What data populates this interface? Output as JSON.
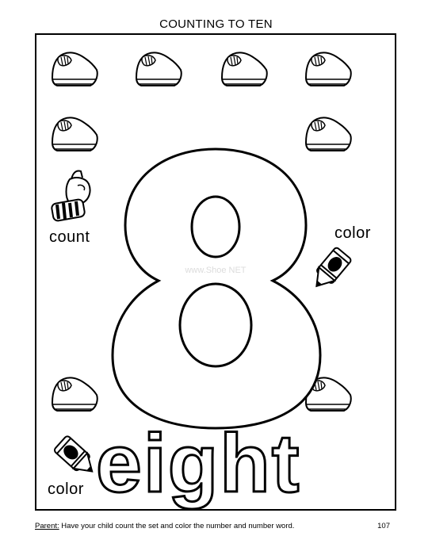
{
  "header": {
    "title": "COUNTING TO TEN"
  },
  "activity": {
    "count_label": "count",
    "color_label_right": "color",
    "color_label_left": "color",
    "numeral": "8",
    "number_word": "eight",
    "shoe_count": 8,
    "watermark": "www.Shoe NET"
  },
  "icons": [
    "shoe-icon",
    "pointing-hand-icon",
    "crayon-icon"
  ],
  "footer": {
    "parent_label": "Parent:",
    "instruction": "Have your child count the set and color the number and number word.",
    "page_number": "107"
  }
}
